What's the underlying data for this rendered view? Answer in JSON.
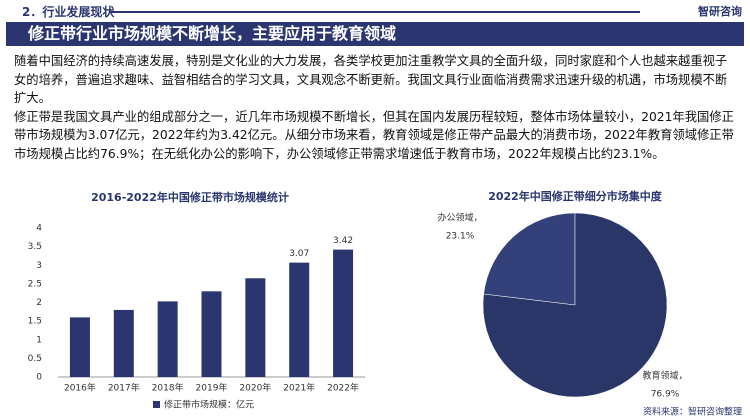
{
  "header": {
    "section": "2．行业发展现状",
    "logo": "智研咨询"
  },
  "title": "修正带行业市场规模不断增长，主要应用于教育领域",
  "paragraphs": [
    "随着中国经济的持续高速发展，特别是文化业的大力发展，各类学校更加注重教学文具的全面升级，同时家庭和个人也越来越重视子女的培养，普遍追求趣味、益智相结合的学习文具，文具观念不断更新。我国文具行业面临消费需求迅速升级的机遇，市场规模不断扩大。",
    "修正带是我国文具产业的组成部分之一，近几年市场规模不断增长，但其在国内发展历程较短，整体市场体量较小，2021年我国修正带市场规模为3.07亿元，2022年约为3.42亿元。从细分市场来看，教育领域是修正带产品最大的消费市场，2022年教育领域修正带市场规模占比约76.9%；在无纸化办公的影响下，办公领域修正带需求增速低于教育市场，2022年规模占比约23.1%。"
  ],
  "chart_data": [
    {
      "type": "bar",
      "title": "2016-2022年中国修正带市场规模统计",
      "categories": [
        "2016年",
        "2017年",
        "2018年",
        "2019年",
        "2020年",
        "2021年",
        "2022年"
      ],
      "series": [
        {
          "name": "修正带市场规模：亿元",
          "color": "#2b3670",
          "values": [
            1.6,
            1.8,
            2.03,
            2.3,
            2.65,
            3.07,
            3.42
          ],
          "value_labels": [
            null,
            null,
            null,
            null,
            null,
            "3.07",
            "3.42"
          ]
        }
      ],
      "ylim": [
        0,
        4
      ],
      "yticks": [
        0,
        0.5,
        1,
        1.5,
        2,
        2.5,
        3,
        3.5,
        4
      ],
      "legend": "bottom"
    },
    {
      "type": "pie",
      "title": "2022年中国修正带细分市场集中度",
      "categories": [
        "办公领域，",
        "教育领域，"
      ],
      "values": [
        23.1,
        76.9
      ],
      "value_labels": [
        "23.1%",
        "76.9%"
      ],
      "colors": [
        "#33407a",
        "#2a3668"
      ]
    }
  ],
  "source": "资料来源：智研咨询整理"
}
